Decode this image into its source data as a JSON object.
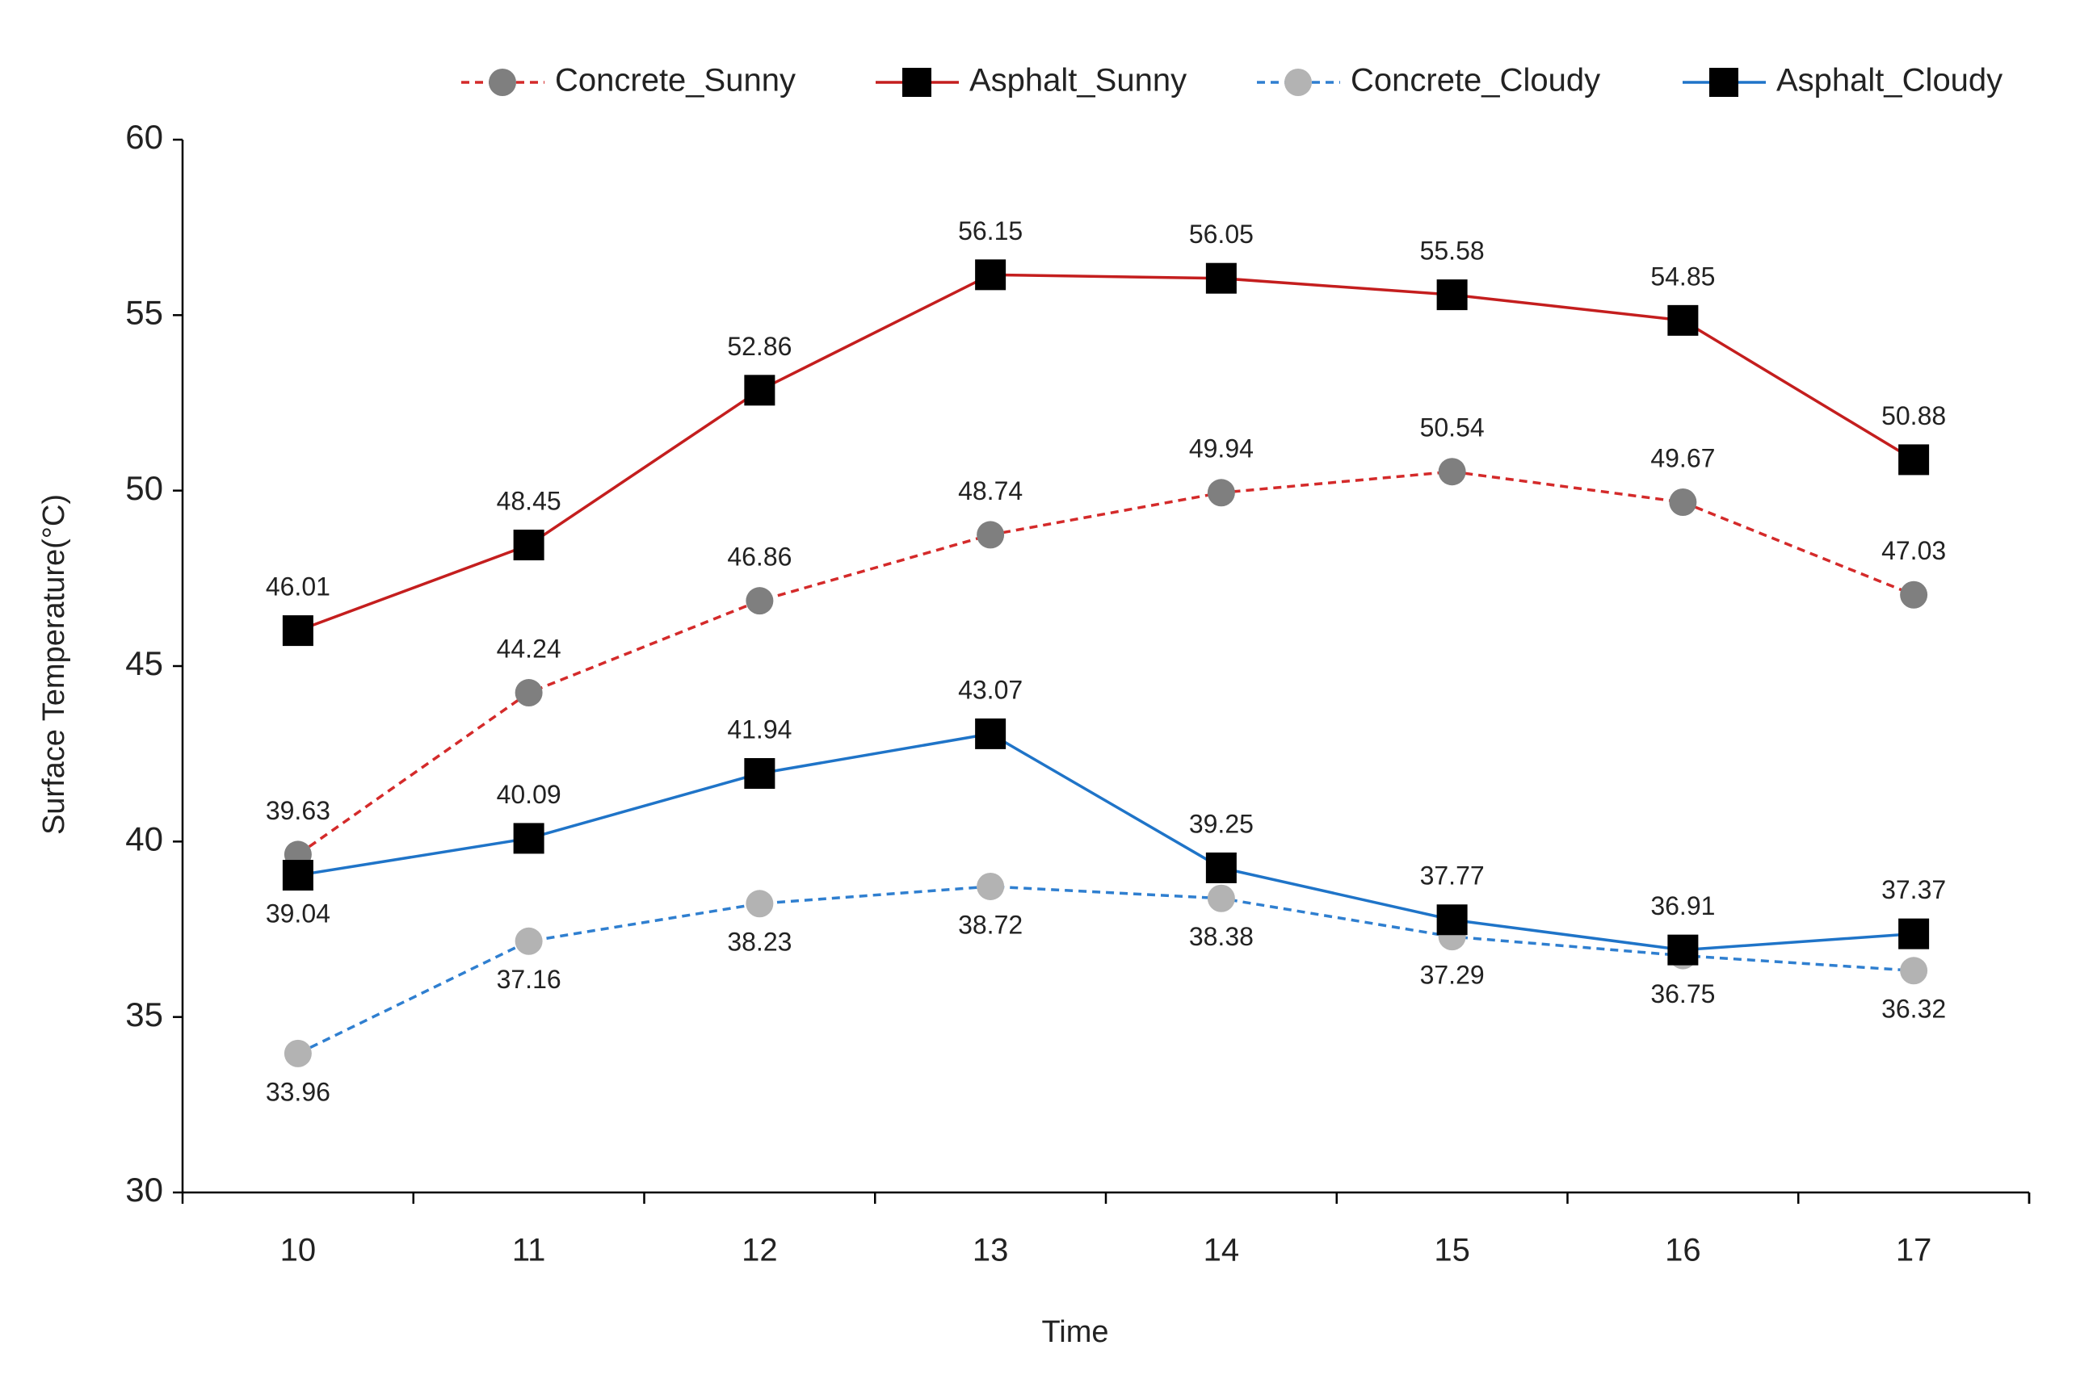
{
  "chart_data": {
    "type": "line",
    "x_label": "Time",
    "y_label": "Surface Temperature(°C)",
    "categories": [
      "10",
      "11",
      "12",
      "13",
      "14",
      "15",
      "16",
      "17"
    ],
    "ylim": [
      30,
      60
    ],
    "yticks": [
      30,
      35,
      40,
      45,
      50,
      55,
      60
    ],
    "series": [
      {
        "name": "Concrete_Sunny",
        "color": "#d42a2a",
        "marker_color": "#7f7f7f",
        "marker": "circle",
        "dashed": true,
        "values": [
          39.63,
          44.24,
          46.86,
          48.74,
          49.94,
          50.54,
          49.67,
          47.03
        ]
      },
      {
        "name": "Asphalt_Sunny",
        "color": "#c41e1e",
        "marker_color": "#000000",
        "marker": "square",
        "dashed": false,
        "values": [
          46.01,
          48.45,
          52.86,
          56.15,
          56.05,
          55.58,
          54.85,
          50.88
        ]
      },
      {
        "name": "Concrete_Cloudy",
        "color": "#2f7fd0",
        "marker_color": "#b3b3b3",
        "marker": "circle",
        "dashed": true,
        "values": [
          33.96,
          37.16,
          38.23,
          38.72,
          38.38,
          37.29,
          36.75,
          36.32
        ]
      },
      {
        "name": "Asphalt_Cloudy",
        "color": "#1f74c8",
        "marker_color": "#000000",
        "marker": "square",
        "dashed": false,
        "values": [
          39.04,
          40.09,
          41.94,
          43.07,
          39.25,
          37.77,
          36.91,
          37.37
        ]
      }
    ]
  }
}
